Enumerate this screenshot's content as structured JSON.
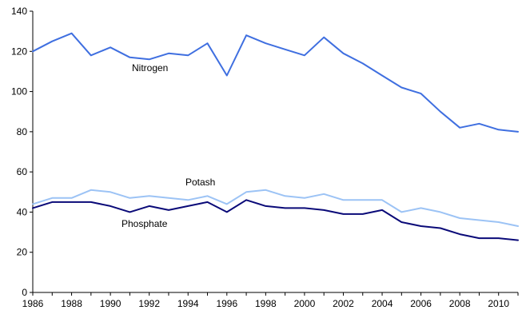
{
  "chart_data": {
    "type": "line",
    "title": "",
    "xlabel": "",
    "ylabel": "",
    "xlim": [
      1986,
      2011
    ],
    "ylim": [
      0,
      140
    ],
    "y_ticks": [
      0,
      20,
      40,
      60,
      80,
      100,
      120,
      140
    ],
    "x_ticks": [
      1986,
      1988,
      1990,
      1992,
      1994,
      1996,
      1998,
      2000,
      2002,
      2004,
      2006,
      2008,
      2010
    ],
    "grid": false,
    "legend": "none",
    "x": [
      1986,
      1987,
      1988,
      1989,
      1990,
      1991,
      1992,
      1993,
      1994,
      1995,
      1996,
      1997,
      1998,
      1999,
      2000,
      2001,
      2002,
      2003,
      2004,
      2005,
      2006,
      2007,
      2008,
      2009,
      2010,
      2011
    ],
    "series": [
      {
        "name": "Nitrogen",
        "color": "#3f6fe0",
        "values": [
          120,
          125,
          129,
          118,
          122,
          117,
          116,
          119,
          118,
          124,
          108,
          128,
          124,
          121,
          118,
          127,
          119,
          114,
          108,
          102,
          99,
          90,
          82,
          84,
          81,
          80
        ]
      },
      {
        "name": "Potash",
        "color": "#9cc3f5",
        "values": [
          44,
          47,
          47,
          51,
          50,
          47,
          48,
          47,
          46,
          48,
          44,
          50,
          51,
          48,
          47,
          49,
          46,
          46,
          46,
          40,
          42,
          40,
          37,
          36,
          35,
          33
        ]
      },
      {
        "name": "Phosphate",
        "color": "#0a0a78",
        "values": [
          42,
          45,
          45,
          45,
          43,
          40,
          43,
          41,
          43,
          45,
          40,
          46,
          43,
          42,
          42,
          41,
          39,
          39,
          41,
          35,
          33,
          32,
          29,
          27,
          27,
          26
        ]
      }
    ]
  }
}
